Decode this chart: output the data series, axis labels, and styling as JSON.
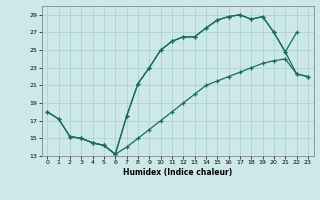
{
  "xlabel": "Humidex (Indice chaleur)",
  "bg_color": "#cce8e8",
  "grid_color": "#aacece",
  "line_color": "#1a6b5a",
  "xlim": [
    -0.5,
    23.5
  ],
  "ylim": [
    13,
    30
  ],
  "xticks": [
    0,
    1,
    2,
    3,
    4,
    5,
    6,
    7,
    8,
    9,
    10,
    11,
    12,
    13,
    14,
    15,
    16,
    17,
    18,
    19,
    20,
    21,
    22,
    23
  ],
  "yticks": [
    13,
    15,
    17,
    19,
    21,
    23,
    25,
    27,
    29
  ],
  "line1_x": [
    0,
    1,
    2,
    3,
    4,
    5,
    6,
    7,
    8,
    9,
    10,
    11,
    12,
    13,
    14,
    15,
    16,
    17,
    18,
    19,
    20,
    21,
    22
  ],
  "line1_y": [
    18.0,
    17.2,
    15.2,
    15.0,
    14.5,
    14.2,
    13.2,
    17.5,
    21.2,
    23.0,
    25.0,
    26.0,
    26.5,
    26.5,
    27.5,
    28.4,
    28.8,
    29.0,
    28.5,
    28.8,
    27.0,
    24.8,
    27.0
  ],
  "line2_x": [
    0,
    1,
    2,
    3,
    4,
    5,
    6,
    7,
    8,
    9,
    10,
    11,
    12,
    13,
    14,
    15,
    16,
    17,
    18,
    19,
    20,
    21,
    22,
    23
  ],
  "line2_y": [
    18.0,
    17.2,
    15.2,
    15.0,
    14.5,
    14.2,
    13.2,
    14.0,
    15.0,
    16.0,
    17.0,
    18.0,
    19.0,
    20.0,
    21.0,
    21.5,
    22.0,
    22.5,
    23.0,
    23.5,
    23.8,
    24.0,
    22.3,
    22.0
  ],
  "line3_x": [
    2,
    3,
    4,
    5,
    6,
    7,
    8,
    9,
    10,
    11,
    12,
    13,
    14,
    15,
    16,
    17,
    18,
    19,
    20,
    21,
    22,
    23
  ],
  "line3_y": [
    15.2,
    15.0,
    14.5,
    14.2,
    13.2,
    17.5,
    21.2,
    23.0,
    25.0,
    26.0,
    26.5,
    26.5,
    27.5,
    28.4,
    28.8,
    29.0,
    28.5,
    28.8,
    27.0,
    24.8,
    22.3,
    22.0
  ]
}
